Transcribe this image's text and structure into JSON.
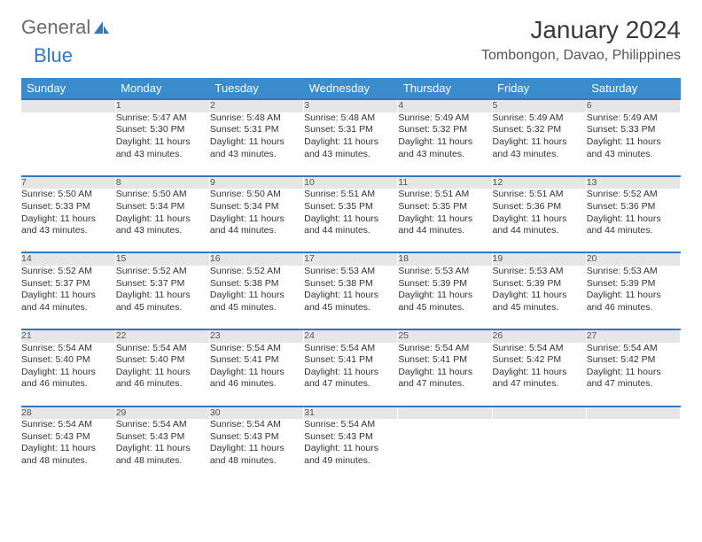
{
  "logo": {
    "text1": "General",
    "text2": "Blue"
  },
  "title": "January 2024",
  "location": "Tombongon, Davao, Philippines",
  "colors": {
    "header_bg": "#3b8ccc",
    "header_text": "#ffffff",
    "daynum_bg": "#e6e6e6",
    "daynum_border": "#2f7ac0",
    "logo_blue": "#2f7ac0"
  },
  "weekdays": [
    "Sunday",
    "Monday",
    "Tuesday",
    "Wednesday",
    "Thursday",
    "Friday",
    "Saturday"
  ],
  "weeks": [
    {
      "nums": [
        "",
        "1",
        "2",
        "3",
        "4",
        "5",
        "6"
      ],
      "cells": [
        null,
        {
          "sr": "Sunrise: 5:47 AM",
          "ss": "Sunset: 5:30 PM",
          "d1": "Daylight: 11 hours",
          "d2": "and 43 minutes."
        },
        {
          "sr": "Sunrise: 5:48 AM",
          "ss": "Sunset: 5:31 PM",
          "d1": "Daylight: 11 hours",
          "d2": "and 43 minutes."
        },
        {
          "sr": "Sunrise: 5:48 AM",
          "ss": "Sunset: 5:31 PM",
          "d1": "Daylight: 11 hours",
          "d2": "and 43 minutes."
        },
        {
          "sr": "Sunrise: 5:49 AM",
          "ss": "Sunset: 5:32 PM",
          "d1": "Daylight: 11 hours",
          "d2": "and 43 minutes."
        },
        {
          "sr": "Sunrise: 5:49 AM",
          "ss": "Sunset: 5:32 PM",
          "d1": "Daylight: 11 hours",
          "d2": "and 43 minutes."
        },
        {
          "sr": "Sunrise: 5:49 AM",
          "ss": "Sunset: 5:33 PM",
          "d1": "Daylight: 11 hours",
          "d2": "and 43 minutes."
        }
      ]
    },
    {
      "nums": [
        "7",
        "8",
        "9",
        "10",
        "11",
        "12",
        "13"
      ],
      "cells": [
        {
          "sr": "Sunrise: 5:50 AM",
          "ss": "Sunset: 5:33 PM",
          "d1": "Daylight: 11 hours",
          "d2": "and 43 minutes."
        },
        {
          "sr": "Sunrise: 5:50 AM",
          "ss": "Sunset: 5:34 PM",
          "d1": "Daylight: 11 hours",
          "d2": "and 43 minutes."
        },
        {
          "sr": "Sunrise: 5:50 AM",
          "ss": "Sunset: 5:34 PM",
          "d1": "Daylight: 11 hours",
          "d2": "and 44 minutes."
        },
        {
          "sr": "Sunrise: 5:51 AM",
          "ss": "Sunset: 5:35 PM",
          "d1": "Daylight: 11 hours",
          "d2": "and 44 minutes."
        },
        {
          "sr": "Sunrise: 5:51 AM",
          "ss": "Sunset: 5:35 PM",
          "d1": "Daylight: 11 hours",
          "d2": "and 44 minutes."
        },
        {
          "sr": "Sunrise: 5:51 AM",
          "ss": "Sunset: 5:36 PM",
          "d1": "Daylight: 11 hours",
          "d2": "and 44 minutes."
        },
        {
          "sr": "Sunrise: 5:52 AM",
          "ss": "Sunset: 5:36 PM",
          "d1": "Daylight: 11 hours",
          "d2": "and 44 minutes."
        }
      ]
    },
    {
      "nums": [
        "14",
        "15",
        "16",
        "17",
        "18",
        "19",
        "20"
      ],
      "cells": [
        {
          "sr": "Sunrise: 5:52 AM",
          "ss": "Sunset: 5:37 PM",
          "d1": "Daylight: 11 hours",
          "d2": "and 44 minutes."
        },
        {
          "sr": "Sunrise: 5:52 AM",
          "ss": "Sunset: 5:37 PM",
          "d1": "Daylight: 11 hours",
          "d2": "and 45 minutes."
        },
        {
          "sr": "Sunrise: 5:52 AM",
          "ss": "Sunset: 5:38 PM",
          "d1": "Daylight: 11 hours",
          "d2": "and 45 minutes."
        },
        {
          "sr": "Sunrise: 5:53 AM",
          "ss": "Sunset: 5:38 PM",
          "d1": "Daylight: 11 hours",
          "d2": "and 45 minutes."
        },
        {
          "sr": "Sunrise: 5:53 AM",
          "ss": "Sunset: 5:39 PM",
          "d1": "Daylight: 11 hours",
          "d2": "and 45 minutes."
        },
        {
          "sr": "Sunrise: 5:53 AM",
          "ss": "Sunset: 5:39 PM",
          "d1": "Daylight: 11 hours",
          "d2": "and 45 minutes."
        },
        {
          "sr": "Sunrise: 5:53 AM",
          "ss": "Sunset: 5:39 PM",
          "d1": "Daylight: 11 hours",
          "d2": "and 46 minutes."
        }
      ]
    },
    {
      "nums": [
        "21",
        "22",
        "23",
        "24",
        "25",
        "26",
        "27"
      ],
      "cells": [
        {
          "sr": "Sunrise: 5:54 AM",
          "ss": "Sunset: 5:40 PM",
          "d1": "Daylight: 11 hours",
          "d2": "and 46 minutes."
        },
        {
          "sr": "Sunrise: 5:54 AM",
          "ss": "Sunset: 5:40 PM",
          "d1": "Daylight: 11 hours",
          "d2": "and 46 minutes."
        },
        {
          "sr": "Sunrise: 5:54 AM",
          "ss": "Sunset: 5:41 PM",
          "d1": "Daylight: 11 hours",
          "d2": "and 46 minutes."
        },
        {
          "sr": "Sunrise: 5:54 AM",
          "ss": "Sunset: 5:41 PM",
          "d1": "Daylight: 11 hours",
          "d2": "and 47 minutes."
        },
        {
          "sr": "Sunrise: 5:54 AM",
          "ss": "Sunset: 5:41 PM",
          "d1": "Daylight: 11 hours",
          "d2": "and 47 minutes."
        },
        {
          "sr": "Sunrise: 5:54 AM",
          "ss": "Sunset: 5:42 PM",
          "d1": "Daylight: 11 hours",
          "d2": "and 47 minutes."
        },
        {
          "sr": "Sunrise: 5:54 AM",
          "ss": "Sunset: 5:42 PM",
          "d1": "Daylight: 11 hours",
          "d2": "and 47 minutes."
        }
      ]
    },
    {
      "nums": [
        "28",
        "29",
        "30",
        "31",
        "",
        "",
        ""
      ],
      "cells": [
        {
          "sr": "Sunrise: 5:54 AM",
          "ss": "Sunset: 5:43 PM",
          "d1": "Daylight: 11 hours",
          "d2": "and 48 minutes."
        },
        {
          "sr": "Sunrise: 5:54 AM",
          "ss": "Sunset: 5:43 PM",
          "d1": "Daylight: 11 hours",
          "d2": "and 48 minutes."
        },
        {
          "sr": "Sunrise: 5:54 AM",
          "ss": "Sunset: 5:43 PM",
          "d1": "Daylight: 11 hours",
          "d2": "and 48 minutes."
        },
        {
          "sr": "Sunrise: 5:54 AM",
          "ss": "Sunset: 5:43 PM",
          "d1": "Daylight: 11 hours",
          "d2": "and 49 minutes."
        },
        null,
        null,
        null
      ]
    }
  ]
}
